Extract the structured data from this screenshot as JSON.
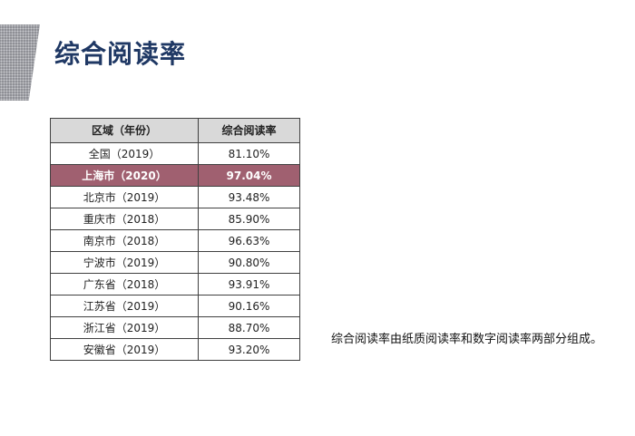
{
  "slide": {
    "title": "综合阅读率",
    "note": "综合阅读率由纸质阅读率和数字阅读率两部分组成。"
  },
  "table": {
    "headers": [
      "区域（年份）",
      "综合阅读率"
    ],
    "rows": [
      {
        "region": "全国（2019）",
        "rate": "81.10%",
        "highlight": false
      },
      {
        "region": "上海市（2020）",
        "rate": "97.04%",
        "highlight": true
      },
      {
        "region": "北京市（2019）",
        "rate": "93.48%",
        "highlight": false
      },
      {
        "region": "重庆市（2018）",
        "rate": "85.90%",
        "highlight": false
      },
      {
        "region": "南京市（2018）",
        "rate": "96.63%",
        "highlight": false
      },
      {
        "region": "宁波市（2019）",
        "rate": "90.80%",
        "highlight": false
      },
      {
        "region": "广东省（2018）",
        "rate": "93.91%",
        "highlight": false
      },
      {
        "region": "江苏省（2019）",
        "rate": "90.16%",
        "highlight": false
      },
      {
        "region": "浙江省（2019）",
        "rate": "88.70%",
        "highlight": false
      },
      {
        "region": "安徽省（2019）",
        "rate": "93.20%",
        "highlight": false
      }
    ],
    "highlight_color": "#a06070",
    "header_color": "#d9d9d9"
  },
  "colors": {
    "title": "#1f3864",
    "decoration": "#8f9096"
  }
}
